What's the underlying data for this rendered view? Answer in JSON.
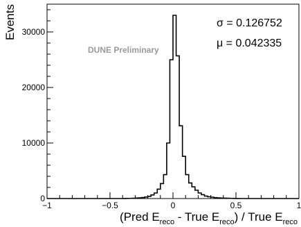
{
  "chart_data": {
    "type": "bar",
    "title": "",
    "xlabel": {
      "parts": [
        "(Pred E",
        "reco",
        " - True E",
        "reco",
        ") / True E",
        "reco"
      ]
    },
    "ylabel": "Events",
    "xlim": [
      -1,
      1
    ],
    "ylim": [
      0,
      35000
    ],
    "xticks": [
      -1,
      -0.5,
      0,
      0.5,
      1
    ],
    "xtick_labels": [
      "−1",
      "−0.5",
      "0",
      "0.5",
      "1"
    ],
    "yticks": [
      0,
      10000,
      20000,
      30000
    ],
    "ytick_labels": [
      "0",
      "10000",
      "20000",
      "30000"
    ],
    "annotations": {
      "watermark": "DUNE Preliminary",
      "sigma": "σ = 0.126752",
      "mu": "μ = 0.042335"
    },
    "bin_width": 0.025,
    "bin_low_edges": [
      -1.0,
      -0.975,
      -0.95,
      -0.925,
      -0.9,
      -0.875,
      -0.85,
      -0.825,
      -0.8,
      -0.775,
      -0.75,
      -0.725,
      -0.7,
      -0.675,
      -0.65,
      -0.625,
      -0.6,
      -0.575,
      -0.55,
      -0.525,
      -0.5,
      -0.475,
      -0.45,
      -0.425,
      -0.4,
      -0.375,
      -0.35,
      -0.325,
      -0.3,
      -0.275,
      -0.25,
      -0.225,
      -0.2,
      -0.175,
      -0.15,
      -0.125,
      -0.1,
      -0.075,
      -0.05,
      -0.025,
      0.0,
      0.025,
      0.05,
      0.075,
      0.1,
      0.125,
      0.15,
      0.175,
      0.2,
      0.225,
      0.25,
      0.275,
      0.3,
      0.325,
      0.35,
      0.375,
      0.4,
      0.425,
      0.45,
      0.475,
      0.5,
      0.525,
      0.55,
      0.575,
      0.6,
      0.625,
      0.65,
      0.675,
      0.7,
      0.725,
      0.75,
      0.775,
      0.8,
      0.825,
      0.85,
      0.875,
      0.9,
      0.925,
      0.95,
      0.975
    ],
    "values": [
      0,
      0,
      0,
      0,
      0,
      0,
      0,
      0,
      0,
      0,
      0,
      0,
      0,
      0,
      0,
      0,
      0,
      0,
      0,
      0,
      0,
      0,
      0,
      0,
      10,
      20,
      30,
      50,
      80,
      120,
      180,
      270,
      400,
      650,
      1000,
      1700,
      2700,
      4300,
      10000,
      25000,
      33000,
      25700,
      13100,
      7600,
      4300,
      2800,
      2100,
      1500,
      1000,
      700,
      450,
      320,
      250,
      170,
      120,
      90,
      70,
      50,
      30,
      20,
      10,
      0,
      0,
      0,
      0,
      0,
      0,
      0,
      0,
      0,
      0,
      0,
      0,
      0,
      0,
      0,
      0,
      0,
      0,
      0
    ]
  }
}
